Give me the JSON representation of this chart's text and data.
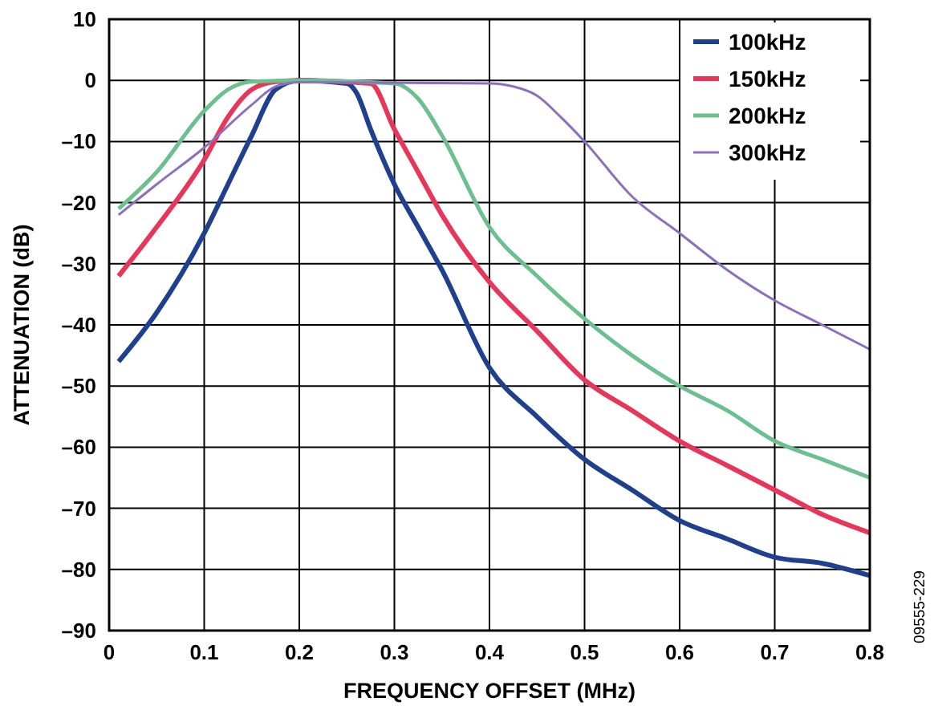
{
  "chart_data": {
    "type": "line",
    "xlabel": "FREQUENCY OFFSET (MHz)",
    "ylabel": "ATTENUATION (dB)",
    "xlim": [
      0,
      0.8
    ],
    "xticks": [
      0,
      0.1,
      0.2,
      0.3,
      0.4,
      0.5,
      0.6,
      0.7,
      0.8
    ],
    "ylim": [
      -90,
      10
    ],
    "yticks": [
      {
        "value": -90,
        "label": "–90"
      },
      {
        "value": -80,
        "label": "–80"
      },
      {
        "value": -70,
        "label": "–70"
      },
      {
        "value": -60,
        "label": "–60"
      },
      {
        "value": -50,
        "label": "–50"
      },
      {
        "value": -40,
        "label": "–40"
      },
      {
        "value": -30,
        "label": "–30"
      },
      {
        "value": -20,
        "label": "–20"
      },
      {
        "value": -10,
        "label": "–10"
      },
      0,
      10
    ],
    "grid": true,
    "legend": "top right",
    "line_style": "solid",
    "annotations": [
      "09555-229"
    ],
    "series": [
      {
        "name": "100kHz",
        "color": "#1f3f8f",
        "x": [
          0.01,
          0.05,
          0.1,
          0.125,
          0.15,
          0.175,
          0.2,
          0.25,
          0.26,
          0.275,
          0.3,
          0.325,
          0.35,
          0.4,
          0.45,
          0.5,
          0.55,
          0.6,
          0.65,
          0.7,
          0.75,
          0.8
        ],
        "values": [
          -46,
          -38,
          -25,
          -17,
          -9,
          -1.5,
          0,
          -0.5,
          -2,
          -8,
          -17,
          -24,
          -31,
          -47,
          -55,
          -62,
          -67,
          -72,
          -75,
          -78,
          -79,
          -81
        ]
      },
      {
        "name": "150kHz",
        "color": "#e8365a",
        "x": [
          0.01,
          0.05,
          0.1,
          0.125,
          0.15,
          0.175,
          0.2,
          0.275,
          0.3,
          0.325,
          0.35,
          0.4,
          0.45,
          0.5,
          0.55,
          0.6,
          0.65,
          0.7,
          0.75,
          0.8
        ],
        "values": [
          -32,
          -24,
          -13,
          -6,
          -1.5,
          -0.2,
          0,
          -0.5,
          -8,
          -15,
          -22,
          -33,
          -41,
          -49,
          -54,
          -59,
          -63,
          -67,
          -71,
          -74
        ]
      },
      {
        "name": "200kHz",
        "color": "#6cbf8f",
        "x": [
          0.01,
          0.05,
          0.1,
          0.125,
          0.15,
          0.2,
          0.3,
          0.325,
          0.35,
          0.4,
          0.45,
          0.5,
          0.55,
          0.6,
          0.65,
          0.7,
          0.75,
          0.8
        ],
        "values": [
          -21,
          -15,
          -5,
          -1.5,
          -0.2,
          0,
          -0.5,
          -3,
          -9,
          -24,
          -32,
          -39,
          -45,
          -50,
          -54,
          -59,
          -62,
          -65
        ]
      },
      {
        "name": "300kHz",
        "color": "#8c6fbe",
        "x": [
          0.01,
          0.05,
          0.1,
          0.15,
          0.175,
          0.2,
          0.4,
          0.425,
          0.45,
          0.475,
          0.5,
          0.55,
          0.6,
          0.65,
          0.7,
          0.75,
          0.8
        ],
        "values": [
          -22,
          -17,
          -11,
          -4,
          -1,
          -0.3,
          -0.5,
          -1,
          -2.5,
          -6,
          -10,
          -19,
          -25,
          -31,
          -36,
          -40,
          -44
        ]
      }
    ]
  }
}
